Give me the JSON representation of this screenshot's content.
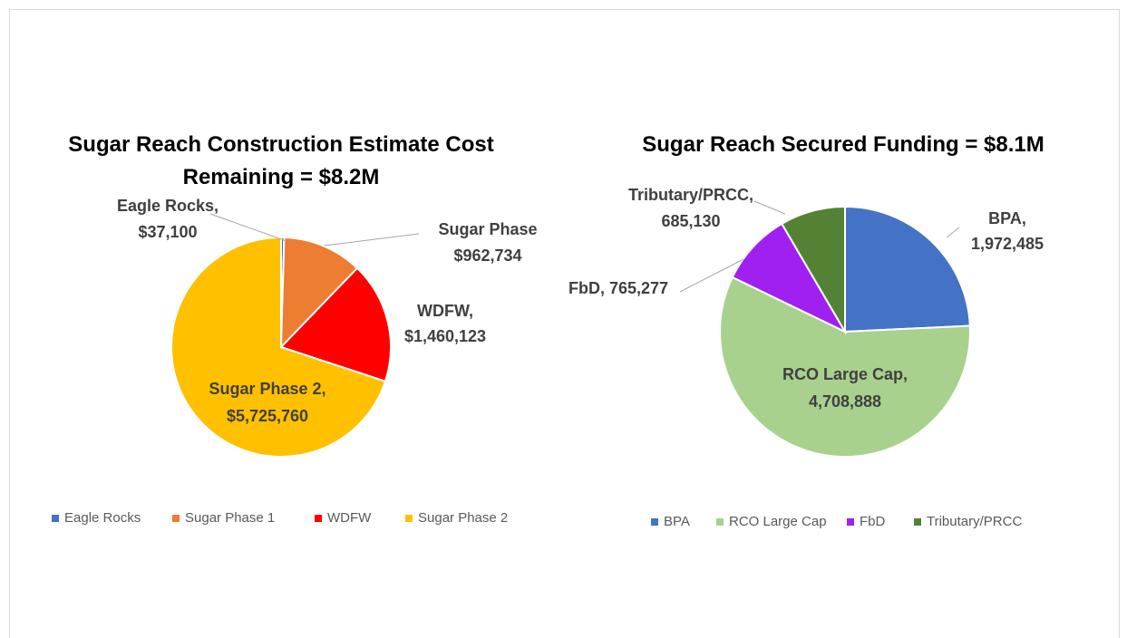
{
  "chart_data": [
    {
      "type": "pie",
      "title": "Sugar Reach Construction Estimate Cost Remaining = $8.2M",
      "categories": [
        "Eagle Rocks",
        "Sugar Phase 1",
        "WDFW",
        "Sugar Phase 2"
      ],
      "values": [
        37100,
        962734,
        1460123,
        5725760
      ],
      "value_labels": [
        "$37,100",
        "$962,734",
        "$1,460,123",
        "$5,725,760"
      ],
      "label_names": [
        "Eagle Rocks,",
        "Sugar Phase",
        "WDFW,",
        "Sugar Phase 2,"
      ],
      "colors": [
        "#4472c4",
        "#ed7d31",
        "#ff0000",
        "#ffc000"
      ],
      "legend": "bottom"
    },
    {
      "type": "pie",
      "title": "Sugar Reach Secured Funding = $8.1M",
      "categories": [
        "BPA",
        "RCO Large Cap",
        "FbD",
        "Tributary/PRCC"
      ],
      "values": [
        1972485,
        4708888,
        765277,
        685130
      ],
      "value_labels": [
        "1,972,485",
        "4,708,888",
        "765,277",
        "685,130"
      ],
      "label_names": [
        "BPA,",
        "RCO Large Cap,",
        "FbD,",
        "Tributary/PRCC,"
      ],
      "colors": [
        "#4472c4",
        "#a9d18e",
        "#a020f0",
        "#548235"
      ],
      "legend": "bottom"
    }
  ]
}
